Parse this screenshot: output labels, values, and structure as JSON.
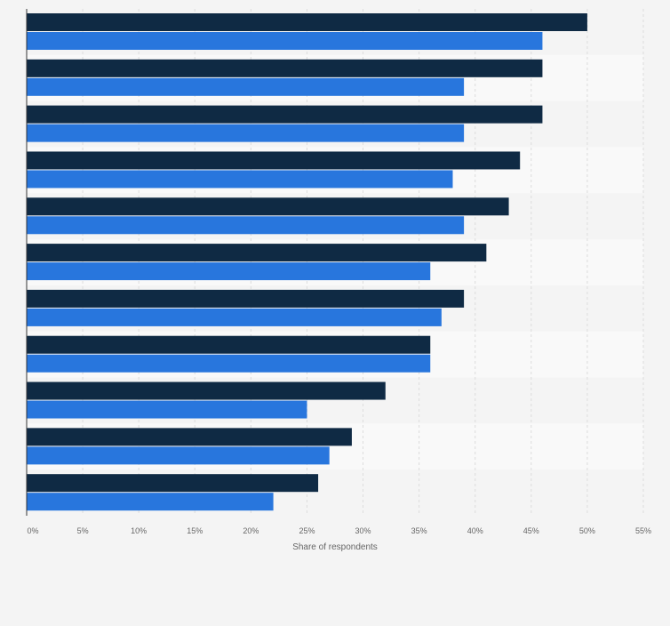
{
  "chart_data": {
    "type": "bar",
    "orientation": "horizontal",
    "title": "",
    "xlabel": "Share of respondents",
    "ylabel": "",
    "xlim": [
      0,
      55
    ],
    "x_ticks": [
      "0%",
      "5%",
      "10%",
      "15%",
      "20%",
      "25%",
      "30%",
      "35%",
      "40%",
      "45%",
      "50%",
      "55%"
    ],
    "grid": true,
    "legend": "none",
    "categories": [
      "",
      "",
      "",
      "",
      "",
      "",
      "",
      "",
      "",
      "",
      ""
    ],
    "series": [
      {
        "color": "#0f2a44",
        "values": [
          50,
          46,
          46,
          44,
          43,
          41,
          39,
          36,
          32,
          29,
          26
        ]
      },
      {
        "color": "#2876dd",
        "values": [
          46,
          39,
          39,
          38,
          39,
          36,
          37,
          36,
          25,
          27,
          22
        ]
      }
    ]
  }
}
